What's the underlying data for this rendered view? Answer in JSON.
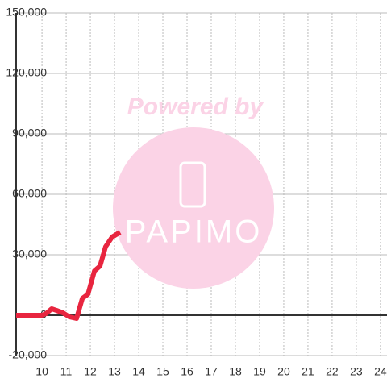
{
  "chart_data": {
    "type": "line",
    "x": [
      8.93,
      10,
      10.17,
      10.4,
      10.6,
      10.87,
      11.13,
      11.43,
      11.67,
      11.9,
      12.17,
      12.4,
      12.63,
      12.9,
      13.23
    ],
    "series": [
      {
        "color": "#e8253f",
        "values": [
          0,
          0,
          800,
          3200,
          2400,
          1200,
          -800,
          -1600,
          8400,
          10400,
          22000,
          24400,
          34000,
          38800,
          41200
        ]
      }
    ],
    "xlim": [
      8.93,
      24.27
    ],
    "xticks": [
      10,
      11,
      12,
      13,
      14,
      15,
      16,
      17,
      18,
      19,
      20,
      21,
      22,
      23,
      24
    ],
    "ylim": [
      -20000,
      150000
    ],
    "yticks": [
      {
        "value": -20000,
        "label": "-20,000"
      },
      0,
      {
        "value": 30000,
        "label": "30,000"
      },
      {
        "value": 60000,
        "label": "60,000"
      },
      {
        "value": 90000,
        "label": "90,000"
      },
      {
        "value": 120000,
        "label": "120,000"
      },
      {
        "value": 150000,
        "label": "150,000"
      }
    ],
    "grid": true
  },
  "watermark": {
    "powered_by": "Powered by",
    "logo": "PAPIMO"
  }
}
